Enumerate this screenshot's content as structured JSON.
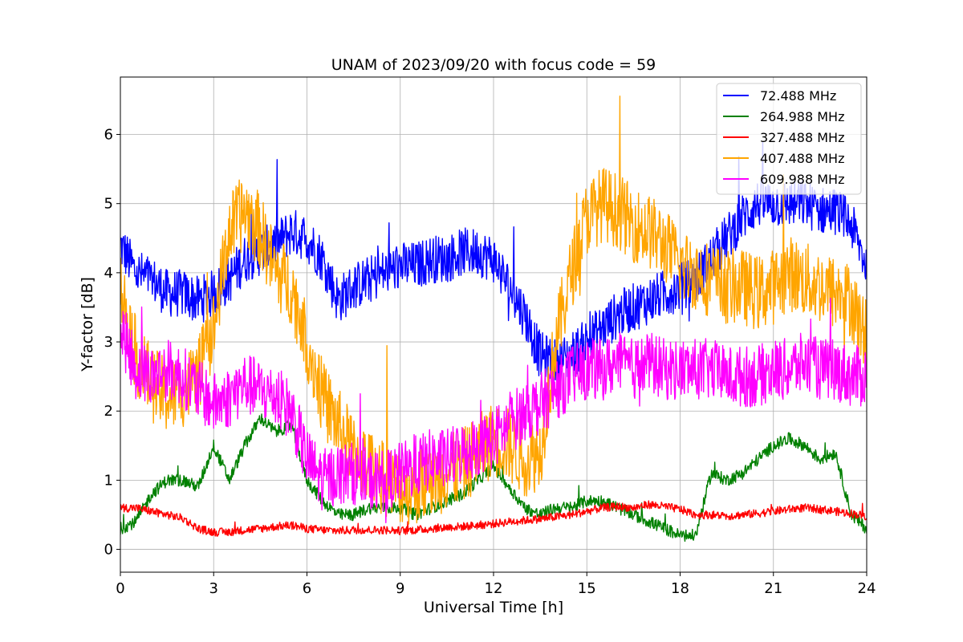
{
  "chart_data": {
    "type": "line",
    "title": "UNAM of 2023/09/20 with focus code = 59",
    "xlabel": "Universal Time [h]",
    "ylabel": "Y-factor [dB]",
    "xlim": [
      0,
      24
    ],
    "ylim": [
      -0.33,
      6.83
    ],
    "xticks": [
      0,
      3,
      6,
      9,
      12,
      15,
      18,
      21,
      24
    ],
    "yticks": [
      0,
      1,
      2,
      3,
      4,
      5,
      6
    ],
    "grid": true,
    "legend_position": "top-right",
    "x": [
      0,
      0.5,
      1,
      1.5,
      2,
      2.5,
      3,
      3.5,
      4,
      4.5,
      5,
      5.5,
      6,
      6.5,
      7,
      7.5,
      8,
      8.5,
      9,
      9.5,
      10,
      10.5,
      11,
      11.5,
      12,
      12.5,
      13,
      13.5,
      14,
      14.5,
      15,
      15.5,
      16,
      16.5,
      17,
      17.5,
      18,
      18.5,
      19,
      19.5,
      20,
      20.5,
      21,
      21.5,
      22,
      22.5,
      23,
      23.5,
      24
    ],
    "series": [
      {
        "name": " 72.488 MHz",
        "color": "#0000ff",
        "values": [
          4.4,
          4.0,
          3.9,
          3.7,
          3.7,
          3.6,
          3.7,
          3.9,
          4.2,
          4.3,
          4.4,
          4.6,
          4.5,
          4.2,
          3.6,
          3.8,
          3.9,
          4.0,
          4.1,
          4.1,
          4.2,
          4.2,
          4.3,
          4.3,
          4.2,
          3.8,
          3.4,
          2.8,
          2.7,
          2.8,
          3.0,
          3.2,
          3.4,
          3.5,
          3.6,
          3.7,
          3.8,
          3.9,
          4.2,
          4.5,
          4.8,
          5.0,
          5.0,
          5.0,
          5.0,
          4.9,
          4.9,
          4.7,
          4.1
        ],
        "noise": 0.35
      },
      {
        "name": "264.988 MHz",
        "color": "#008000",
        "values": [
          0.3,
          0.4,
          0.8,
          1.0,
          1.0,
          0.9,
          1.5,
          1.0,
          1.5,
          1.9,
          1.7,
          1.8,
          1.0,
          0.7,
          0.5,
          0.5,
          0.6,
          0.6,
          0.6,
          0.5,
          0.6,
          0.7,
          0.8,
          1.0,
          1.2,
          0.9,
          0.6,
          0.5,
          0.6,
          0.6,
          0.7,
          0.7,
          0.6,
          0.5,
          0.4,
          0.3,
          0.2,
          0.2,
          1.1,
          1.0,
          1.1,
          1.3,
          1.5,
          1.6,
          1.5,
          1.3,
          1.4,
          0.5,
          0.3
        ],
        "noise": 0.09
      },
      {
        "name": "327.488 MHz",
        "color": "#ff0000",
        "values": [
          0.6,
          0.6,
          0.55,
          0.5,
          0.45,
          0.3,
          0.25,
          0.25,
          0.28,
          0.3,
          0.33,
          0.35,
          0.3,
          0.28,
          0.27,
          0.28,
          0.28,
          0.28,
          0.27,
          0.28,
          0.3,
          0.32,
          0.33,
          0.35,
          0.37,
          0.4,
          0.42,
          0.44,
          0.47,
          0.5,
          0.55,
          0.6,
          0.62,
          0.6,
          0.65,
          0.62,
          0.58,
          0.5,
          0.5,
          0.48,
          0.5,
          0.52,
          0.55,
          0.58,
          0.6,
          0.58,
          0.55,
          0.52,
          0.48
        ],
        "noise": 0.06
      },
      {
        "name": "407.488 MHz",
        "color": "#ffa500",
        "values": [
          3.8,
          2.8,
          2.4,
          2.2,
          2.3,
          2.5,
          3.2,
          4.6,
          4.9,
          4.6,
          4.0,
          3.8,
          3.0,
          2.2,
          1.8,
          1.4,
          1.2,
          1.0,
          0.9,
          0.9,
          1.0,
          1.1,
          1.2,
          1.4,
          1.6,
          1.5,
          1.3,
          1.4,
          3.0,
          4.0,
          4.8,
          5.0,
          4.9,
          4.7,
          4.6,
          4.4,
          4.1,
          4.0,
          3.9,
          3.8,
          3.8,
          3.7,
          3.8,
          4.0,
          3.9,
          3.8,
          3.7,
          3.6,
          3.0
        ],
        "noise": 0.55
      },
      {
        "name": "609.988 MHz",
        "color": "#ff00ff",
        "values": [
          3.2,
          2.6,
          2.5,
          2.6,
          2.5,
          2.3,
          2.1,
          2.2,
          2.4,
          2.3,
          2.2,
          2.0,
          1.3,
          1.0,
          1.1,
          1.1,
          1.0,
          1.0,
          1.1,
          1.2,
          1.3,
          1.3,
          1.4,
          1.5,
          1.6,
          1.8,
          2.0,
          2.1,
          2.3,
          2.5,
          2.6,
          2.6,
          2.7,
          2.6,
          2.7,
          2.6,
          2.6,
          2.6,
          2.6,
          2.5,
          2.5,
          2.5,
          2.6,
          2.6,
          2.7,
          2.6,
          2.6,
          2.5,
          2.5
        ],
        "noise": 0.45
      }
    ]
  }
}
